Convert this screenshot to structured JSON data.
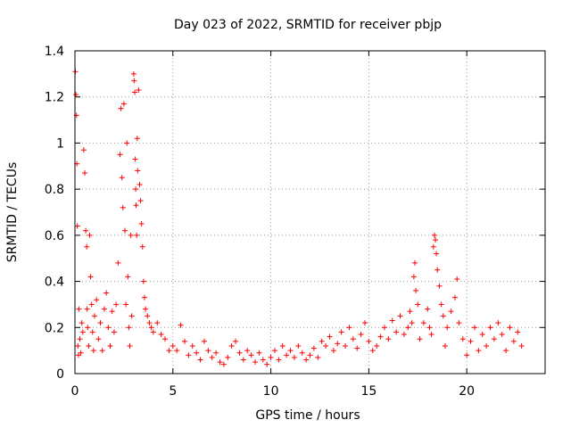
{
  "chart_data": {
    "type": "scatter",
    "title": "Day 023 of 2022, SRMTID for receiver pbjp",
    "xlabel": "GPS time / hours",
    "ylabel": "SRMTID / TECUs",
    "xlim": [
      0,
      24
    ],
    "ylim": [
      0,
      1.4
    ],
    "xticks": [
      0,
      5,
      10,
      15,
      20
    ],
    "xtick_labels": [
      "0",
      "5",
      "10",
      "15",
      "20"
    ],
    "yticks": [
      0,
      0.2,
      0.4,
      0.6,
      0.8,
      1.0,
      1.2,
      1.4
    ],
    "ytick_labels": [
      "0",
      "0.2",
      "0.4",
      "0.6",
      "0.8",
      "1",
      "1.2",
      "1.4"
    ],
    "grid": true,
    "marker": "+",
    "color": "#ff0000",
    "series": [
      {
        "name": "SRMTID",
        "points": [
          [
            0.02,
            1.31
          ],
          [
            0.05,
            1.21
          ],
          [
            0.08,
            1.12
          ],
          [
            0.1,
            0.91
          ],
          [
            0.12,
            0.64
          ],
          [
            0.15,
            0.12
          ],
          [
            0.18,
            0.08
          ],
          [
            0.2,
            0.28
          ],
          [
            0.25,
            0.15
          ],
          [
            0.3,
            0.09
          ],
          [
            0.35,
            0.22
          ],
          [
            0.4,
            0.18
          ],
          [
            0.45,
            0.97
          ],
          [
            0.5,
            0.87
          ],
          [
            0.55,
            0.62
          ],
          [
            0.6,
            0.55
          ],
          [
            0.62,
            0.28
          ],
          [
            0.65,
            0.2
          ],
          [
            0.7,
            0.12
          ],
          [
            0.75,
            0.6
          ],
          [
            0.8,
            0.42
          ],
          [
            0.85,
            0.3
          ],
          [
            0.9,
            0.18
          ],
          [
            0.95,
            0.1
          ],
          [
            1.0,
            0.25
          ],
          [
            1.1,
            0.32
          ],
          [
            1.2,
            0.15
          ],
          [
            1.3,
            0.22
          ],
          [
            1.4,
            0.1
          ],
          [
            1.5,
            0.28
          ],
          [
            1.6,
            0.35
          ],
          [
            1.7,
            0.2
          ],
          [
            1.8,
            0.12
          ],
          [
            1.9,
            0.27
          ],
          [
            2.0,
            0.18
          ],
          [
            2.1,
            0.3
          ],
          [
            2.2,
            0.48
          ],
          [
            2.3,
            0.95
          ],
          [
            2.35,
            1.15
          ],
          [
            2.4,
            0.85
          ],
          [
            2.45,
            0.72
          ],
          [
            2.5,
            1.17
          ],
          [
            2.55,
            0.62
          ],
          [
            2.6,
            0.3
          ],
          [
            2.65,
            1.0
          ],
          [
            2.7,
            0.42
          ],
          [
            2.75,
            0.2
          ],
          [
            2.8,
            0.12
          ],
          [
            2.85,
            0.6
          ],
          [
            2.9,
            0.25
          ],
          [
            3.0,
            1.3
          ],
          [
            3.02,
            1.27
          ],
          [
            3.05,
            1.22
          ],
          [
            3.08,
            0.93
          ],
          [
            3.1,
            0.8
          ],
          [
            3.12,
            0.73
          ],
          [
            3.15,
            0.6
          ],
          [
            3.18,
            1.02
          ],
          [
            3.2,
            0.88
          ],
          [
            3.25,
            1.23
          ],
          [
            3.3,
            0.82
          ],
          [
            3.35,
            0.75
          ],
          [
            3.4,
            0.65
          ],
          [
            3.45,
            0.55
          ],
          [
            3.5,
            0.4
          ],
          [
            3.55,
            0.33
          ],
          [
            3.6,
            0.28
          ],
          [
            3.7,
            0.25
          ],
          [
            3.8,
            0.22
          ],
          [
            3.9,
            0.2
          ],
          [
            4.0,
            0.18
          ],
          [
            4.2,
            0.22
          ],
          [
            4.4,
            0.17
          ],
          [
            4.6,
            0.15
          ],
          [
            4.8,
            0.1
          ],
          [
            5.0,
            0.12
          ],
          [
            5.2,
            0.1
          ],
          [
            5.4,
            0.21
          ],
          [
            5.6,
            0.14
          ],
          [
            5.8,
            0.08
          ],
          [
            6.0,
            0.12
          ],
          [
            6.2,
            0.09
          ],
          [
            6.4,
            0.06
          ],
          [
            6.6,
            0.14
          ],
          [
            6.8,
            0.1
          ],
          [
            7.0,
            0.07
          ],
          [
            7.2,
            0.09
          ],
          [
            7.4,
            0.05
          ],
          [
            7.6,
            0.04
          ],
          [
            7.8,
            0.07
          ],
          [
            8.0,
            0.12
          ],
          [
            8.2,
            0.14
          ],
          [
            8.4,
            0.09
          ],
          [
            8.6,
            0.06
          ],
          [
            8.8,
            0.1
          ],
          [
            9.0,
            0.08
          ],
          [
            9.2,
            0.05
          ],
          [
            9.4,
            0.09
          ],
          [
            9.6,
            0.06
          ],
          [
            9.8,
            0.04
          ],
          [
            10.0,
            0.07
          ],
          [
            10.2,
            0.1
          ],
          [
            10.4,
            0.06
          ],
          [
            10.6,
            0.12
          ],
          [
            10.8,
            0.08
          ],
          [
            11.0,
            0.1
          ],
          [
            11.2,
            0.07
          ],
          [
            11.4,
            0.12
          ],
          [
            11.6,
            0.09
          ],
          [
            11.8,
            0.06
          ],
          [
            12.0,
            0.08
          ],
          [
            12.2,
            0.11
          ],
          [
            12.4,
            0.07
          ],
          [
            12.6,
            0.14
          ],
          [
            12.8,
            0.12
          ],
          [
            13.0,
            0.16
          ],
          [
            13.2,
            0.1
          ],
          [
            13.4,
            0.13
          ],
          [
            13.6,
            0.18
          ],
          [
            13.8,
            0.12
          ],
          [
            14.0,
            0.2
          ],
          [
            14.2,
            0.15
          ],
          [
            14.4,
            0.11
          ],
          [
            14.6,
            0.17
          ],
          [
            14.8,
            0.22
          ],
          [
            15.0,
            0.14
          ],
          [
            15.2,
            0.1
          ],
          [
            15.4,
            0.12
          ],
          [
            15.6,
            0.16
          ],
          [
            15.8,
            0.2
          ],
          [
            16.0,
            0.15
          ],
          [
            16.2,
            0.23
          ],
          [
            16.4,
            0.18
          ],
          [
            16.6,
            0.25
          ],
          [
            16.8,
            0.17
          ],
          [
            17.0,
            0.2
          ],
          [
            17.1,
            0.27
          ],
          [
            17.2,
            0.22
          ],
          [
            17.3,
            0.42
          ],
          [
            17.35,
            0.48
          ],
          [
            17.4,
            0.36
          ],
          [
            17.5,
            0.3
          ],
          [
            17.6,
            0.15
          ],
          [
            17.8,
            0.22
          ],
          [
            18.0,
            0.28
          ],
          [
            18.1,
            0.2
          ],
          [
            18.2,
            0.17
          ],
          [
            18.3,
            0.55
          ],
          [
            18.35,
            0.6
          ],
          [
            18.4,
            0.58
          ],
          [
            18.45,
            0.52
          ],
          [
            18.5,
            0.45
          ],
          [
            18.6,
            0.38
          ],
          [
            18.7,
            0.3
          ],
          [
            18.8,
            0.25
          ],
          [
            18.9,
            0.12
          ],
          [
            19.0,
            0.2
          ],
          [
            19.2,
            0.27
          ],
          [
            19.4,
            0.33
          ],
          [
            19.5,
            0.41
          ],
          [
            19.6,
            0.22
          ],
          [
            19.8,
            0.15
          ],
          [
            20.0,
            0.08
          ],
          [
            20.2,
            0.14
          ],
          [
            20.4,
            0.2
          ],
          [
            20.6,
            0.1
          ],
          [
            20.8,
            0.17
          ],
          [
            21.0,
            0.12
          ],
          [
            21.2,
            0.2
          ],
          [
            21.4,
            0.15
          ],
          [
            21.6,
            0.22
          ],
          [
            21.8,
            0.17
          ],
          [
            22.0,
            0.1
          ],
          [
            22.2,
            0.2
          ],
          [
            22.4,
            0.14
          ],
          [
            22.6,
            0.18
          ],
          [
            22.8,
            0.12
          ]
        ]
      }
    ]
  }
}
